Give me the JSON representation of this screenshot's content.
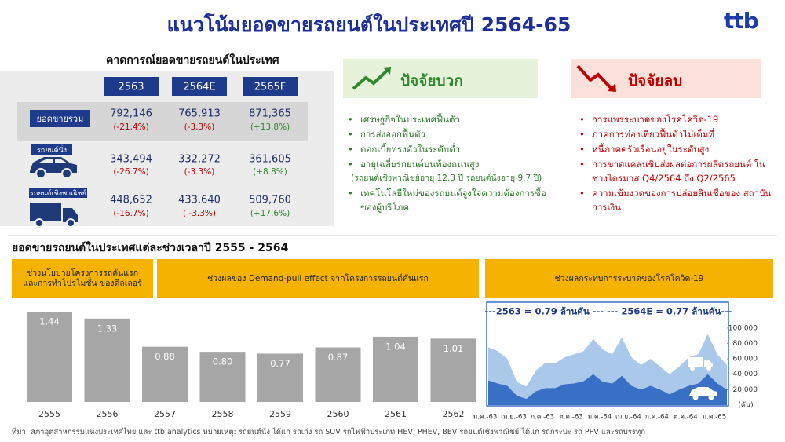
{
  "header": {
    "title": "แนวโน้มยอดขายรถยนต์ในประเทศปี 2564-65",
    "logo": "ttb"
  },
  "forecast": {
    "title": "คาดการณ์ยอดขายรถยนต์ในประเทศ",
    "columns": [
      "2563",
      "2564E",
      "2565F"
    ],
    "rows": [
      {
        "label": "ยอดขายรวม",
        "values": [
          "792,146",
          "765,913",
          "871,365"
        ],
        "changes": [
          "(-21.4%)",
          "(-3.3%)",
          "(+13.8%)"
        ]
      },
      {
        "label": "รถยนต์นั่ง",
        "values": [
          "343,494",
          "332,272",
          "361,605"
        ],
        "changes": [
          "(-26.7%)",
          "(-3.3%)",
          "(+8.8%)"
        ]
      },
      {
        "label": "รถยนต์เชิงพาณิชย์",
        "values": [
          "448,652",
          "433,640",
          "509,760"
        ],
        "changes": [
          "(-16.7%)",
          "( -3.3%)",
          "(+17.6%)"
        ]
      }
    ]
  },
  "positive": {
    "title": "ปัจจัยบวก",
    "items": [
      {
        "text": "เศรษฐกิจในประเทศฟื้นตัว"
      },
      {
        "text": "การส่งออกฟื้นตัว"
      },
      {
        "text": "ดอกเบี้ยทรงตัวในระดับต่ำ"
      },
      {
        "text": "อายุเฉลี่ยรถยนต์บนท้องถนนสูง",
        "note": "(รถยนต์เชิงพาณิชย์อายุ 12.3 ปี รถยนต์นั่งอายุ 9.7 ปี)"
      },
      {
        "text": "เทคโนโลยีใหม่ของรถยนต์จูงใจความต้องการซื้อ ของผู้บริโภค"
      }
    ]
  },
  "negative": {
    "title": "ปัจจัยลบ",
    "items": [
      {
        "text": "การแพร่ระบาดของโรคโควิด-19"
      },
      {
        "text": "ภาคการท่องเที่ยวฟื้นตัวไม่เต็มที่"
      },
      {
        "text": "หนี้ภาคครัวเรือนอยู่ในระดับสูง"
      },
      {
        "text": "การขาดแคลนชิปส่งผลต่อการผลิตรถยนต์ ในช่วงไตรมาส Q4/2564 ถึง Q2/2565"
      },
      {
        "text": "ความเข้มงวดของการปล่อยสินเชื่อของ สถาบันการเงิน"
      }
    ]
  },
  "section_title": "ยอดขายรถยนต์ในประเทศแต่ละช่วงเวลาปี 2555 - 2564",
  "periods": [
    "ช่วงนโยบายโครงการรถคันแรก และการทำโปรโมชั่น ของดีลเลอร์",
    "ช่วงผลของ Demand-pull effect จากโครงการรถยนต์คันแรก",
    "ช่วงผลกระทบการระบาดของโรคโควิด-19"
  ],
  "chart_data": [
    {
      "type": "bar",
      "categories": [
        "2555",
        "2556",
        "2557",
        "2558",
        "2559",
        "2560",
        "2561",
        "2562"
      ],
      "values": [
        1.44,
        1.33,
        0.88,
        0.8,
        0.77,
        0.87,
        1.04,
        1.01
      ],
      "value_labels": [
        "1.44",
        "1.33",
        "0.88",
        "0.80",
        "0.77",
        "0.87",
        "1.04",
        "1.01"
      ],
      "color": "#a6a6a6"
    },
    {
      "type": "area",
      "annotation": "---2563 = 0.79 ล้านคัน --- --- 2564E = 0.77 ล้านคัน---",
      "categories": [
        "ม.ค.-63",
        null,
        null,
        "เม.ย.-63",
        null,
        null,
        "ก.ค.-63",
        null,
        null,
        "ต.ค.-63",
        null,
        null,
        "ม.ค.-64",
        null,
        null,
        "เม.ย.-64",
        null,
        null,
        "ก.ค.-64",
        null,
        null,
        "ต.ค.-64",
        null,
        null,
        "ม.ค.-65",
        null
      ],
      "series": [
        {
          "color": "#a9c8ea",
          "values": [
            75000,
            70000,
            60000,
            30000,
            24000,
            45000,
            55000,
            54000,
            62000,
            66000,
            70000,
            86000,
            72000,
            66000,
            88000,
            62000,
            52000,
            60000,
            50000,
            40000,
            50000,
            62000,
            66000,
            92000,
            66000,
            52000
          ]
        },
        {
          "color": "#3a6fc6",
          "values": [
            32000,
            28000,
            25000,
            12000,
            8000,
            18000,
            22000,
            22000,
            27000,
            28000,
            31000,
            40000,
            30000,
            28000,
            38000,
            25000,
            20000,
            25000,
            20000,
            14000,
            20000,
            25000,
            28000,
            40000,
            28000,
            20000
          ]
        }
      ],
      "ylim": [
        0,
        110000
      ],
      "yticks": [
        {
          "value": 20000,
          "label": "20,000"
        },
        {
          "value": 40000,
          "label": "40,000"
        },
        {
          "value": 60000,
          "label": "60,000"
        },
        {
          "value": 80000,
          "label": "80,000"
        },
        {
          "value": 100000,
          "label": "100,000"
        }
      ],
      "y_unit": "(คัน)"
    }
  ],
  "footnote": "ที่มา: สภาอุตสาหกรรมแห่งประเทศไทย และ ttb analytics หมายเหตุ: รถยนต์นั่ง ได้แก่ รถเก๋ง รถ SUV รถไฟฟ้าประเภท HEV, PHEV, BEV รถยนต์เชิงพาณิชย์ ได้แก่ รถกระบะ รถ PPV และรถบรรทุก"
}
